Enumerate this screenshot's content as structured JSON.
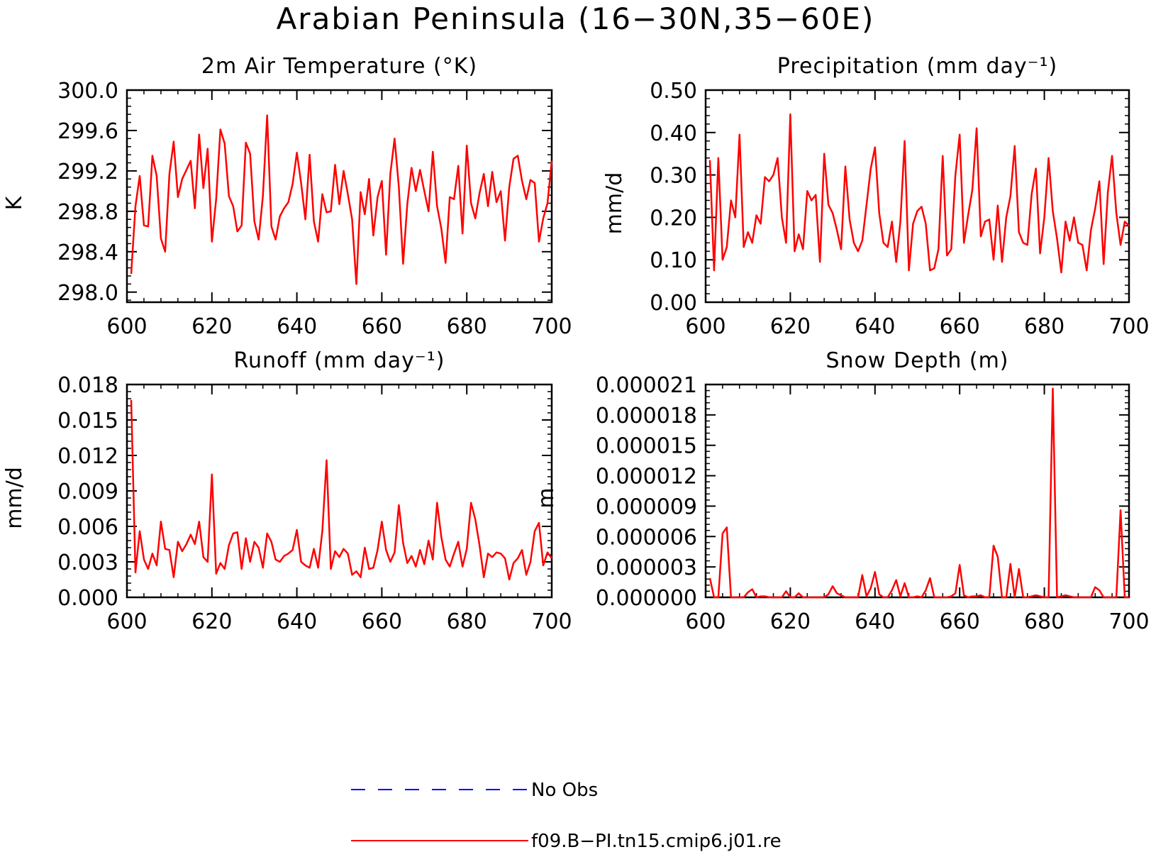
{
  "title": "Arabian Peninsula (16−30N,35−60E)",
  "colors": {
    "model": "#ff0000",
    "obs": "#0000ff",
    "axis": "#000000"
  },
  "legend": [
    {
      "label": "No Obs",
      "style": "dashed",
      "color": "#0000ff"
    },
    {
      "label": "f09.B−PI.tn15.cmip6.j01.re",
      "style": "solid",
      "color": "#ff0000"
    }
  ],
  "chart_data": [
    {
      "id": "temp",
      "type": "line",
      "title": "2m Air Temperature (°K)",
      "ylabel": "K",
      "xlim": [
        600,
        700
      ],
      "ylim": [
        297.9,
        300.0
      ],
      "xticks": [
        600,
        620,
        640,
        660,
        680,
        700
      ],
      "xticklabels": [
        "600",
        "620",
        "640",
        "660",
        "680",
        "700"
      ],
      "yticks": [
        298.0,
        298.4,
        298.8,
        299.2,
        299.6,
        300.0
      ],
      "yticklabels": [
        "298.0",
        "298.4",
        "298.8",
        "299.2",
        "299.6",
        "300.0"
      ],
      "series": [
        {
          "x_start": 601,
          "x_step": 1,
          "values": [
            298.18,
            298.85,
            299.15,
            298.66,
            298.65,
            299.35,
            299.15,
            298.53,
            298.4,
            299.17,
            299.49,
            298.94,
            299.12,
            299.21,
            299.3,
            298.83,
            299.56,
            299.03,
            299.42,
            298.5,
            298.92,
            299.61,
            299.47,
            298.95,
            298.85,
            298.6,
            298.66,
            299.48,
            299.37,
            298.7,
            298.52,
            298.95,
            299.75,
            298.65,
            298.52,
            298.75,
            298.83,
            298.89,
            299.07,
            299.38,
            299.08,
            298.72,
            299.36,
            298.7,
            298.5,
            298.97,
            298.79,
            298.8,
            299.26,
            298.87,
            299.2,
            298.97,
            298.72,
            298.08,
            298.99,
            298.77,
            299.12,
            298.56,
            298.94,
            299.1,
            298.37,
            299.17,
            299.52,
            299.04,
            298.28,
            298.87,
            299.23,
            299.0,
            299.21,
            299.0,
            298.8,
            299.39,
            298.85,
            298.63,
            298.29,
            298.94,
            298.92,
            299.25,
            298.58,
            299.45,
            298.88,
            298.73,
            298.98,
            299.17,
            298.85,
            299.19,
            298.89,
            299.0,
            298.51,
            299.04,
            299.32,
            299.35,
            299.1,
            298.92,
            299.11,
            299.08,
            298.5,
            298.73,
            298.88,
            299.3
          ]
        }
      ]
    },
    {
      "id": "precip",
      "type": "line",
      "title": "Precipitation (mm day⁻¹)",
      "ylabel": "mm/d",
      "xlim": [
        600,
        700
      ],
      "ylim": [
        0.0,
        0.5
      ],
      "xticks": [
        600,
        620,
        640,
        660,
        680,
        700
      ],
      "xticklabels": [
        "600",
        "620",
        "640",
        "660",
        "680",
        "700"
      ],
      "yticks": [
        0.0,
        0.1,
        0.2,
        0.3,
        0.4,
        0.5
      ],
      "yticklabels": [
        "0.00",
        "0.10",
        "0.20",
        "0.30",
        "0.40",
        "0.50"
      ],
      "series": [
        {
          "x_start": 601,
          "x_step": 1,
          "values": [
            0.335,
            0.075,
            0.34,
            0.1,
            0.13,
            0.24,
            0.2,
            0.395,
            0.13,
            0.165,
            0.14,
            0.205,
            0.185,
            0.295,
            0.285,
            0.3,
            0.34,
            0.2,
            0.14,
            0.443,
            0.12,
            0.16,
            0.125,
            0.262,
            0.24,
            0.253,
            0.095,
            0.35,
            0.23,
            0.21,
            0.17,
            0.125,
            0.32,
            0.195,
            0.14,
            0.12,
            0.145,
            0.23,
            0.315,
            0.365,
            0.21,
            0.14,
            0.13,
            0.19,
            0.095,
            0.19,
            0.38,
            0.075,
            0.185,
            0.215,
            0.225,
            0.185,
            0.075,
            0.08,
            0.125,
            0.345,
            0.11,
            0.125,
            0.3,
            0.395,
            0.14,
            0.205,
            0.265,
            0.41,
            0.155,
            0.19,
            0.195,
            0.1,
            0.228,
            0.095,
            0.2,
            0.25,
            0.368,
            0.165,
            0.14,
            0.135,
            0.255,
            0.315,
            0.115,
            0.2,
            0.34,
            0.215,
            0.15,
            0.07,
            0.19,
            0.145,
            0.2,
            0.14,
            0.135,
            0.075,
            0.17,
            0.22,
            0.285,
            0.09,
            0.26,
            0.345,
            0.21,
            0.135,
            0.19,
            0.18
          ]
        }
      ]
    },
    {
      "id": "runoff",
      "type": "line",
      "title": "Runoff (mm day⁻¹)",
      "ylabel": "mm/d",
      "xlim": [
        600,
        700
      ],
      "ylim": [
        0.0,
        0.018
      ],
      "xticks": [
        600,
        620,
        640,
        660,
        680,
        700
      ],
      "xticklabels": [
        "600",
        "620",
        "640",
        "660",
        "680",
        "700"
      ],
      "yticks": [
        0.0,
        0.003,
        0.006,
        0.009,
        0.012,
        0.015,
        0.018
      ],
      "yticklabels": [
        "0.000",
        "0.003",
        "0.006",
        "0.009",
        "0.012",
        "0.015",
        "0.018"
      ],
      "series": [
        {
          "x_start": 601,
          "x_step": 1,
          "values": [
            0.0167,
            0.0021,
            0.0056,
            0.0032,
            0.0024,
            0.0037,
            0.0027,
            0.0064,
            0.0041,
            0.004,
            0.0017,
            0.0047,
            0.0039,
            0.0045,
            0.0053,
            0.0045,
            0.0064,
            0.0034,
            0.003,
            0.0104,
            0.002,
            0.0029,
            0.0024,
            0.0044,
            0.0054,
            0.0055,
            0.0024,
            0.005,
            0.003,
            0.0047,
            0.0042,
            0.0025,
            0.0054,
            0.0047,
            0.0032,
            0.003,
            0.0035,
            0.0037,
            0.004,
            0.0057,
            0.003,
            0.0027,
            0.0025,
            0.0041,
            0.0025,
            0.0056,
            0.0116,
            0.0024,
            0.0039,
            0.0034,
            0.0041,
            0.0037,
            0.0019,
            0.0022,
            0.0017,
            0.0042,
            0.0024,
            0.0025,
            0.004,
            0.0064,
            0.004,
            0.003,
            0.0038,
            0.0078,
            0.0046,
            0.0029,
            0.0035,
            0.0026,
            0.004,
            0.0028,
            0.0048,
            0.0032,
            0.008,
            0.0051,
            0.0032,
            0.0026,
            0.0037,
            0.0047,
            0.0026,
            0.0041,
            0.008,
            0.0066,
            0.0044,
            0.0017,
            0.0037,
            0.0034,
            0.0038,
            0.0037,
            0.0033,
            0.0015,
            0.0029,
            0.0033,
            0.004,
            0.0019,
            0.003,
            0.0056,
            0.0063,
            0.0027,
            0.0038,
            0.0033
          ]
        }
      ]
    },
    {
      "id": "snow",
      "type": "line",
      "title": "Snow Depth (m)",
      "ylabel": "m",
      "xlim": [
        600,
        700
      ],
      "ylim": [
        0.0,
        2.1e-05
      ],
      "xticks": [
        600,
        620,
        640,
        660,
        680,
        700
      ],
      "xticklabels": [
        "600",
        "620",
        "640",
        "660",
        "680",
        "700"
      ],
      "yticks": [
        0.0,
        3e-06,
        6e-06,
        9e-06,
        1.2e-05,
        1.5e-05,
        1.8e-05,
        2.1e-05
      ],
      "yticklabels": [
        "0.000000",
        "0.000003",
        "0.000006",
        "0.000009",
        "0.000012",
        "0.000015",
        "0.000018",
        "0.000021"
      ],
      "series": [
        {
          "x_start": 601,
          "x_step": 1,
          "values": [
            1.9e-06,
            0.0,
            0.0,
            6.3e-06,
            6.9e-06,
            0.0,
            0.0,
            0.0,
            0.0,
            5e-07,
            8e-07,
            0.0,
            1e-07,
            1e-07,
            0.0,
            0.0,
            0.0,
            0.0,
            6e-07,
            0.0,
            0.0,
            4e-07,
            0.0,
            0.0,
            0.0,
            0.0,
            0.0,
            0.0,
            3e-07,
            1.1e-06,
            4e-07,
            2e-07,
            0.0,
            0.0,
            0.0,
            0.0,
            2.2e-06,
            1e-07,
            9e-07,
            2.5e-06,
            3e-07,
            0.0,
            0.0,
            7e-07,
            1.7e-06,
            1e-07,
            1.4e-06,
            0.0,
            0.0,
            1e-07,
            0.0,
            7e-07,
            1.9e-06,
            0.0,
            0.0,
            0.0,
            0.0,
            1e-07,
            4e-07,
            3.2e-06,
            2e-07,
            0.0,
            1e-07,
            1e-07,
            2e-07,
            0.0,
            0.0,
            5.1e-06,
            4e-06,
            0.0,
            0.0,
            3.3e-06,
            0.0,
            2.8e-06,
            0.0,
            0.0,
            1e-07,
            2e-07,
            1e-07,
            0.0,
            0.0,
            2.06e-05,
            0.0,
            1e-07,
            2e-07,
            1e-07,
            0.0,
            0.0,
            0.0,
            0.0,
            0.0,
            1e-06,
            7e-07,
            0.0,
            0.0,
            0.0,
            0.0,
            8.6e-06,
            0.0,
            0.0
          ]
        }
      ]
    }
  ]
}
